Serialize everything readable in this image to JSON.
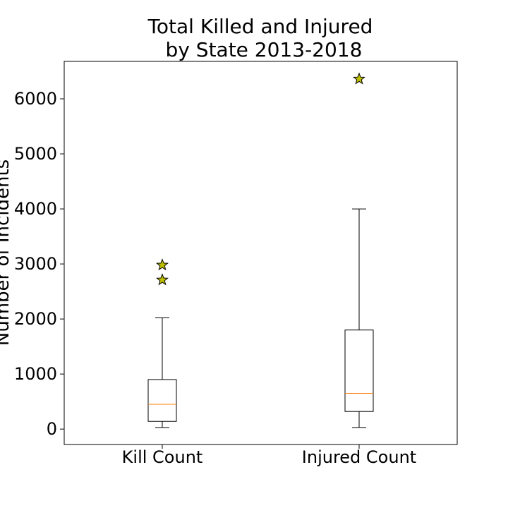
{
  "chart_data": {
    "type": "box",
    "title_lines": [
      "Total Killed and Injured",
      "by State 2013-2018"
    ],
    "xlabel": "",
    "ylabel": "Number of Incidents",
    "ylim": [
      -280,
      6680
    ],
    "yticks": [
      0,
      1000,
      2000,
      3000,
      4000,
      5000,
      6000
    ],
    "grid": false,
    "categories": [
      "Kill Count",
      "Injured Count"
    ],
    "boxes": [
      {
        "label": "Kill Count",
        "whisker_low": 30,
        "q1": 140,
        "median": 450,
        "q3": 900,
        "whisker_high": 2020,
        "outliers": [
          2710,
          2980
        ]
      },
      {
        "label": "Injured Count",
        "whisker_low": 30,
        "q1": 320,
        "median": 650,
        "q3": 1800,
        "whisker_high": 4000,
        "outliers": [
          6360
        ]
      }
    ],
    "colors": {
      "median": "#ff7f0e",
      "outlier_fill": "#bfbf00",
      "outlier_edge": "#000000",
      "box": "#000000"
    },
    "outlier_marker": "star"
  }
}
